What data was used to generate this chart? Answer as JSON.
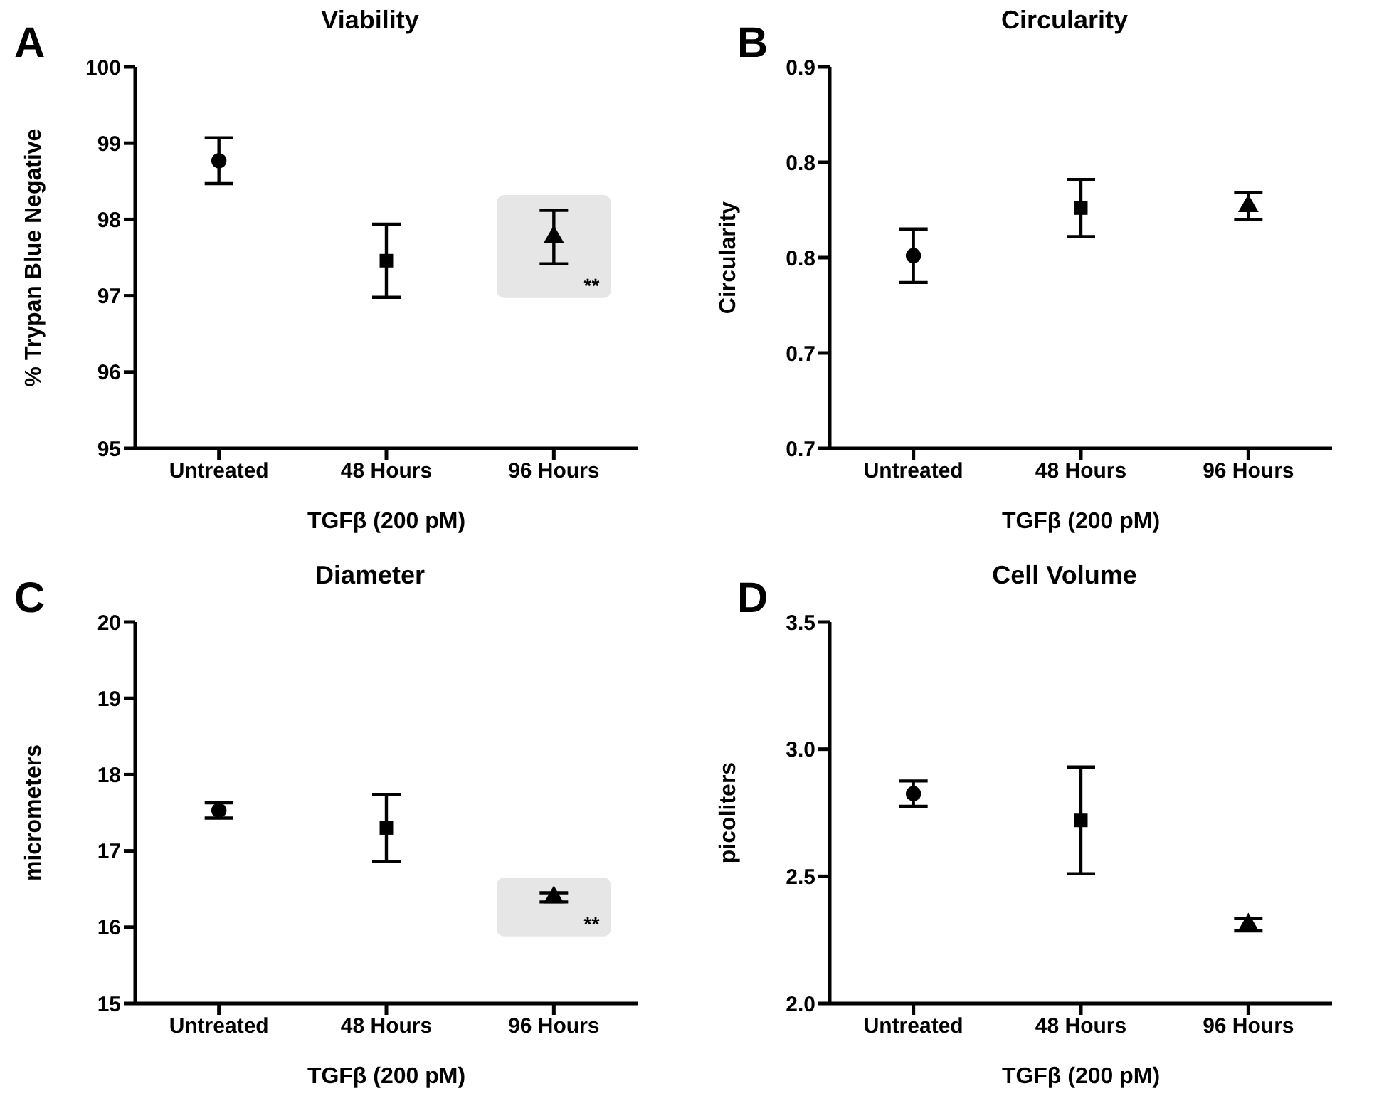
{
  "chart_data": [
    {
      "type": "scatter",
      "title": "Viability",
      "ylabel": "% Trypan Blue Negative",
      "xlabel": "TGFβ (200 pM)",
      "categories": [
        "Untreated",
        "48 Hours",
        "96 Hours"
      ],
      "ylim": [
        95,
        100
      ],
      "yticks": [
        95,
        96,
        97,
        98,
        99,
        100
      ],
      "grid": false,
      "legend": false,
      "series": [
        {
          "color": "#000000",
          "marker": "circle",
          "values": [
            98.77,
            null,
            null
          ],
          "errors": [
            0.3,
            null,
            null
          ]
        },
        {
          "color": "#000000",
          "marker": "square",
          "values": [
            null,
            97.46,
            null
          ],
          "errors": [
            null,
            0.48,
            null
          ]
        },
        {
          "color": "#000000",
          "marker": "triangle",
          "values": [
            null,
            null,
            97.77
          ],
          "errors": [
            null,
            null,
            0.35
          ]
        }
      ],
      "annotations": [
        "A",
        "**"
      ]
    },
    {
      "type": "scatter",
      "title": "Circularity",
      "ylabel": "Circularity",
      "xlabel": "TGFβ (200 pM)",
      "categories": [
        "Untreated",
        "48 Hours",
        "96 Hours"
      ],
      "ylim": [
        0.7,
        0.9
      ],
      "yticks": [
        {
          "value": 0.7,
          "label": "0.7"
        },
        {
          "value": 0.75,
          "label": "0.7"
        },
        {
          "value": 0.8,
          "label": "0.8"
        },
        {
          "value": 0.85,
          "label": "0.8"
        },
        {
          "value": 0.9,
          "label": "0.9"
        }
      ],
      "grid": false,
      "legend": false,
      "series": [
        {
          "color": "#000000",
          "marker": "circle",
          "values": [
            0.801,
            null,
            null
          ],
          "errors": [
            0.014,
            null,
            null
          ]
        },
        {
          "color": "#000000",
          "marker": "square",
          "values": [
            null,
            0.826,
            null
          ],
          "errors": [
            null,
            0.015,
            null
          ]
        },
        {
          "color": "#000000",
          "marker": "triangle",
          "values": [
            null,
            null,
            0.827
          ],
          "errors": [
            null,
            null,
            0.007
          ]
        }
      ],
      "annotations": [
        "B"
      ]
    },
    {
      "type": "scatter",
      "title": "Diameter",
      "ylabel": "micrometers",
      "xlabel": "TGFβ (200 pM)",
      "categories": [
        "Untreated",
        "48 Hours",
        "96 Hours"
      ],
      "ylim": [
        15,
        20
      ],
      "yticks": [
        15,
        16,
        17,
        18,
        19,
        20
      ],
      "grid": false,
      "legend": false,
      "series": [
        {
          "color": "#000000",
          "marker": "circle",
          "values": [
            17.53,
            null,
            null
          ],
          "errors": [
            0.1,
            null,
            null
          ]
        },
        {
          "color": "#000000",
          "marker": "square",
          "values": [
            null,
            17.3,
            null
          ],
          "errors": [
            null,
            0.44,
            null
          ]
        },
        {
          "color": "#000000",
          "marker": "triangle",
          "values": [
            null,
            null,
            16.39
          ],
          "errors": [
            null,
            null,
            0.06
          ]
        }
      ],
      "annotations": [
        "C",
        "**"
      ]
    },
    {
      "type": "scatter",
      "title": "Cell Volume",
      "ylabel": "picoliters",
      "xlabel": "TGFβ (200 pM)",
      "categories": [
        "Untreated",
        "48 Hours",
        "96 Hours"
      ],
      "ylim": [
        2.0,
        3.5
      ],
      "yticks": [
        {
          "value": 2,
          "label": "2.0"
        },
        {
          "value": 2.5,
          "label": "2.5"
        },
        {
          "value": 3,
          "label": "3.0"
        },
        {
          "value": 3.5,
          "label": "3.5"
        }
      ],
      "grid": false,
      "legend": false,
      "series": [
        {
          "color": "#000000",
          "marker": "circle",
          "values": [
            2.825,
            null,
            null
          ],
          "errors": [
            0.05,
            null,
            null
          ]
        },
        {
          "color": "#000000",
          "marker": "square",
          "values": [
            null,
            2.72,
            null
          ],
          "errors": [
            null,
            0.21,
            null
          ]
        },
        {
          "color": "#000000",
          "marker": "triangle",
          "values": [
            null,
            null,
            2.31
          ],
          "errors": [
            null,
            null,
            0.025
          ]
        }
      ],
      "annotations": [
        "D"
      ]
    }
  ]
}
